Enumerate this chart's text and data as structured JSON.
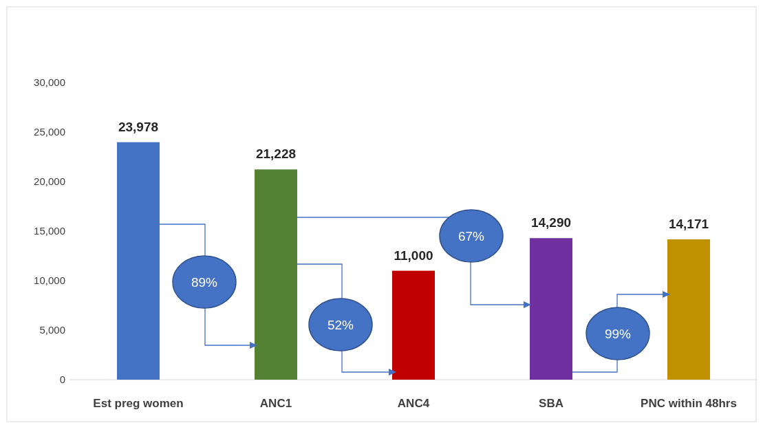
{
  "chart_data": {
    "type": "bar",
    "categories": [
      "Est preg women",
      "ANC1",
      "ANC4",
      "SBA",
      "PNC within 48hrs"
    ],
    "values": [
      23978,
      21228,
      11000,
      14290,
      14171
    ],
    "colors": [
      "#4472c4",
      "#548235",
      "#c00000",
      "#7030a0",
      "#bf9000"
    ],
    "ylim": [
      0,
      30000
    ],
    "yticks": [
      {
        "value": 0,
        "label": "0"
      },
      {
        "value": 5000,
        "label": "5,000"
      },
      {
        "value": 10000,
        "label": "10,000"
      },
      {
        "value": 15000,
        "label": "15,000"
      },
      {
        "value": 20000,
        "label": "20,000"
      },
      {
        "value": 25000,
        "label": "25,000"
      },
      {
        "value": 30000,
        "label": "30,000"
      }
    ],
    "value_labels": [
      "23,978",
      "21,228",
      "11,000",
      "14,290",
      "14,171"
    ],
    "annotations": [
      "89%",
      "52%",
      "67%",
      "99%"
    ],
    "grid": false
  }
}
